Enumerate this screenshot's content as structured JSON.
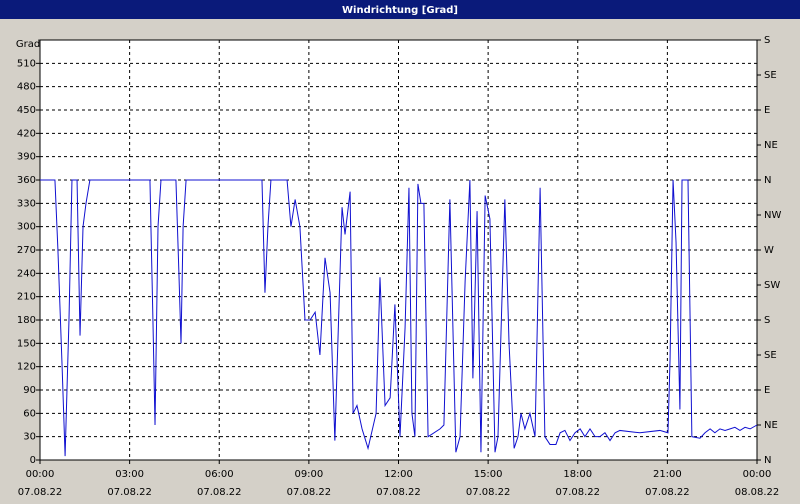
{
  "chart_data": {
    "type": "line",
    "title": "Windrichtung [Grad]",
    "y_label": "Grad",
    "grid": true,
    "xlim": [
      0,
      24
    ],
    "xticks": [
      {
        "value": 0,
        "label": "00:00 07.08.22"
      },
      {
        "value": 3,
        "label": "03:00 07.08.22"
      },
      {
        "value": 6,
        "label": "06:00 07.08.22"
      },
      {
        "value": 9,
        "label": "09:00 07.08.22"
      },
      {
        "value": 12,
        "label": "12:00 07.08.22"
      },
      {
        "value": 15,
        "label": "15:00 07.08.22"
      },
      {
        "value": 18,
        "label": "18:00 07.08.22"
      },
      {
        "value": 21,
        "label": "21:00 07.08.22"
      },
      {
        "value": 24,
        "label": "00:00 08.08.22"
      }
    ],
    "ylim": [
      0,
      540
    ],
    "yticks": [
      0,
      30,
      60,
      90,
      120,
      150,
      180,
      210,
      240,
      270,
      300,
      330,
      360,
      390,
      420,
      450,
      480,
      510
    ],
    "y2lim": [
      0,
      540
    ],
    "y2ticks": [
      {
        "value": 0,
        "label": "N"
      },
      {
        "value": 45,
        "label": "NE"
      },
      {
        "value": 90,
        "label": "E"
      },
      {
        "value": 135,
        "label": "SE"
      },
      {
        "value": 180,
        "label": "S"
      },
      {
        "value": 225,
        "label": "SW"
      },
      {
        "value": 270,
        "label": "W"
      },
      {
        "value": 315,
        "label": "NW"
      },
      {
        "value": 360,
        "label": "N"
      },
      {
        "value": 405,
        "label": "NE"
      },
      {
        "value": 450,
        "label": "E"
      },
      {
        "value": 495,
        "label": "SE"
      },
      {
        "value": 540,
        "label": "S"
      }
    ],
    "x": [
      0,
      0.5,
      0.6,
      0.74,
      0.84,
      0.97,
      1.07,
      1.24,
      1.34,
      1.44,
      1.54,
      1.67,
      3.68,
      3.78,
      3.85,
      3.95,
      4.05,
      4.55,
      4.65,
      4.72,
      4.79,
      4.89,
      7.43,
      7.53,
      7.63,
      7.73,
      8.27,
      8.4,
      8.54,
      8.7,
      8.87,
      9.04,
      9.21,
      9.37,
      9.54,
      9.71,
      9.87,
      10.11,
      10.21,
      10.38,
      10.48,
      10.61,
      10.78,
      10.98,
      11.25,
      11.38,
      11.55,
      11.72,
      11.88,
      12.05,
      12.22,
      12.35,
      12.45,
      12.55,
      12.65,
      12.75,
      12.85,
      12.99,
      13.39,
      13.52,
      13.72,
      13.92,
      14.06,
      14.23,
      14.39,
      14.49,
      14.63,
      14.76,
      14.9,
      15.06,
      15.23,
      15.33,
      15.56,
      15.7,
      15.87,
      16.0,
      16.1,
      16.23,
      16.4,
      16.57,
      16.74,
      16.9,
      17.07,
      17.27,
      17.41,
      17.57,
      17.74,
      17.91,
      18.08,
      18.24,
      18.41,
      18.58,
      18.74,
      18.91,
      19.08,
      19.25,
      19.41,
      20.08,
      20.75,
      21.02,
      21.09,
      21.19,
      21.29,
      21.42,
      21.49,
      21.59,
      21.69,
      21.82,
      22.09,
      22.26,
      22.43,
      22.59,
      22.76,
      22.93,
      23.1,
      23.26,
      23.43,
      23.6,
      23.77,
      24.0
    ],
    "series": [
      {
        "name": "Windrichtung",
        "color": "#1010d0",
        "values": [
          360,
          360,
          270,
          120,
          5,
          180,
          360,
          360,
          160,
          300,
          330,
          360,
          360,
          180,
          45,
          300,
          360,
          360,
          240,
          150,
          300,
          360,
          360,
          215,
          300,
          360,
          360,
          300,
          335,
          300,
          180,
          180,
          190,
          135,
          260,
          215,
          25,
          325,
          290,
          345,
          60,
          70,
          40,
          15,
          60,
          235,
          70,
          80,
          200,
          30,
          170,
          350,
          60,
          30,
          355,
          330,
          330,
          30,
          40,
          45,
          335,
          10,
          30,
          230,
          360,
          105,
          320,
          10,
          340,
          310,
          10,
          30,
          335,
          150,
          15,
          30,
          60,
          40,
          60,
          30,
          350,
          30,
          20,
          20,
          35,
          38,
          25,
          35,
          40,
          30,
          40,
          30,
          30,
          35,
          25,
          35,
          38,
          35,
          38,
          35,
          130,
          360,
          280,
          65,
          360,
          360,
          360,
          30,
          28,
          35,
          40,
          35,
          40,
          38,
          40,
          42,
          38,
          42,
          40,
          45
        ]
      }
    ]
  }
}
